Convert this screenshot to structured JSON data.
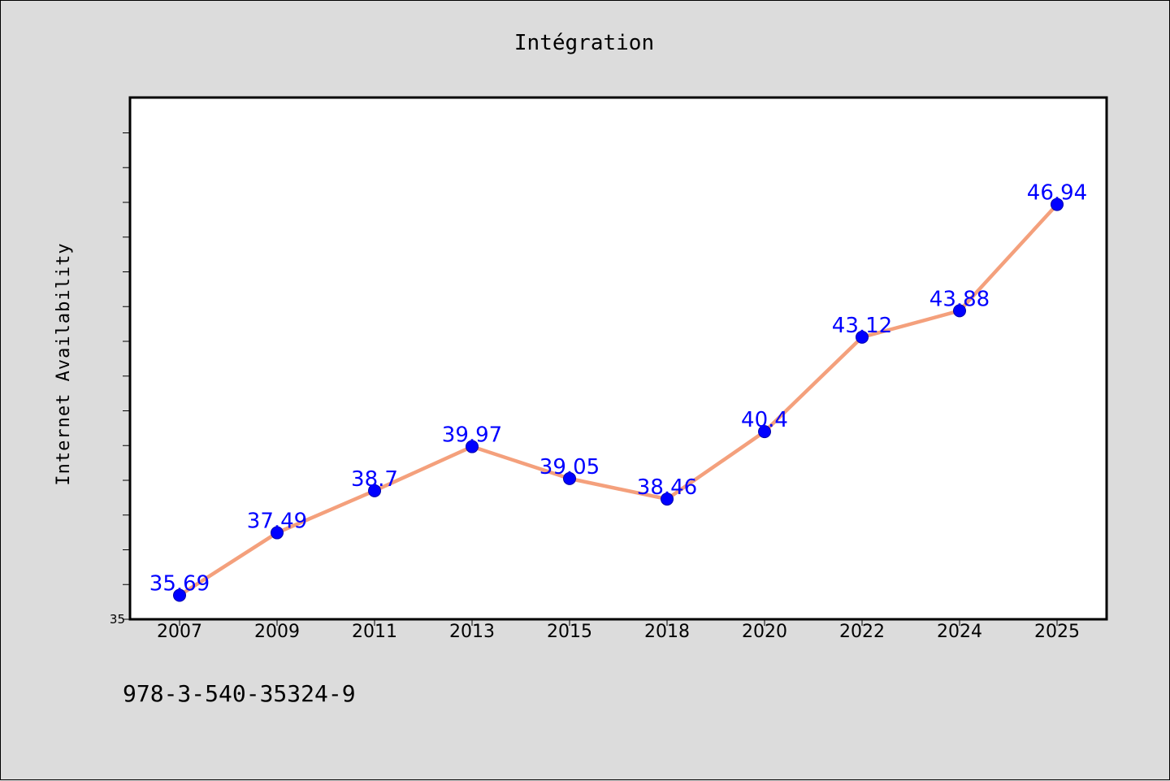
{
  "chart_data": {
    "type": "line",
    "title": "Intégration",
    "xlabel": "",
    "ylabel": "Internet Availability",
    "categories": [
      "2007",
      "2009",
      "2011",
      "2013",
      "2015",
      "2018",
      "2020",
      "2022",
      "2024",
      "2025"
    ],
    "series": [
      {
        "values": [
          35.69,
          37.49,
          38.7,
          39.97,
          39.05,
          38.46,
          40.4,
          43.12,
          43.88,
          46.94
        ],
        "data_labels": [
          "35.69",
          "37.49",
          "38.7",
          "39.97",
          "39.05",
          "38.46",
          "40.4",
          "43.12",
          "43.88",
          "46.94"
        ],
        "line_color": "#f4a07c",
        "marker_color": "#0000ff"
      }
    ],
    "ylim": [
      35,
      50
    ],
    "y_tick_labels": [
      "35"
    ],
    "grid": false,
    "legend": "none"
  },
  "footer": {
    "text": "978-3-540-35324-9"
  }
}
